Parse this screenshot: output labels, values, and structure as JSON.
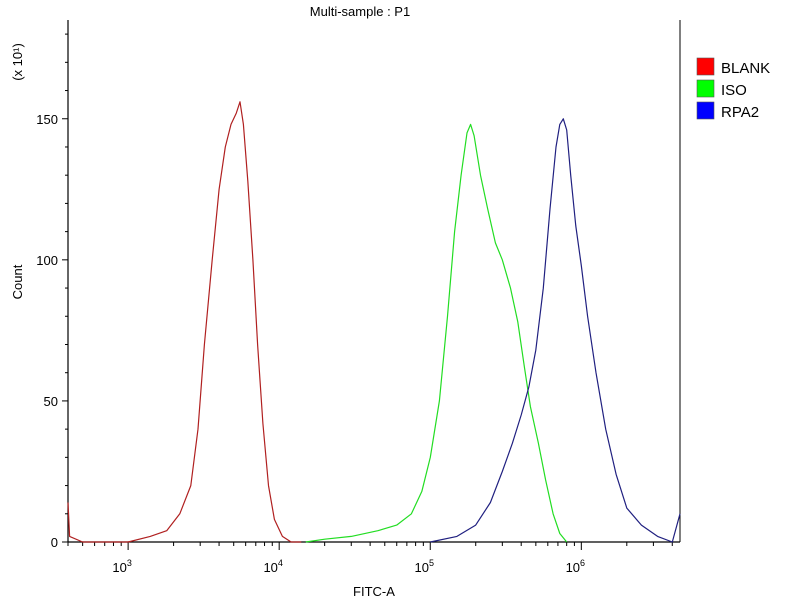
{
  "chart_data": {
    "type": "line",
    "title": "Multi-sample : P1",
    "xlabel": "FITC-A",
    "ylabel": "Count",
    "y_multiplier": "(x 10¹)",
    "x_scale": "log",
    "xlim": [
      400,
      4500000
    ],
    "ylim": [
      0,
      185
    ],
    "x_ticks": [
      {
        "value": 1000,
        "base": "10",
        "exp": "3"
      },
      {
        "value": 10000,
        "base": "10",
        "exp": "4"
      },
      {
        "value": 100000,
        "base": "10",
        "exp": "5"
      },
      {
        "value": 1000000,
        "base": "10",
        "exp": "6"
      }
    ],
    "y_ticks": [
      {
        "value": 0,
        "label": "0"
      },
      {
        "value": 50,
        "label": "50"
      },
      {
        "value": 100,
        "label": "100"
      },
      {
        "value": 150,
        "label": "150"
      }
    ],
    "legend_position": "right",
    "series": [
      {
        "name": "BLANK",
        "color": "#ff0000",
        "line_color": "#b02020",
        "points": [
          [
            400,
            14
          ],
          [
            410,
            2
          ],
          [
            500,
            0
          ],
          [
            1000,
            0
          ],
          [
            1400,
            2
          ],
          [
            1800,
            4
          ],
          [
            2200,
            10
          ],
          [
            2600,
            20
          ],
          [
            2900,
            40
          ],
          [
            3200,
            70
          ],
          [
            3600,
            100
          ],
          [
            4000,
            125
          ],
          [
            4400,
            140
          ],
          [
            4800,
            148
          ],
          [
            5200,
            152
          ],
          [
            5500,
            156
          ],
          [
            5800,
            148
          ],
          [
            6200,
            128
          ],
          [
            6700,
            100
          ],
          [
            7200,
            70
          ],
          [
            7800,
            42
          ],
          [
            8500,
            20
          ],
          [
            9300,
            8
          ],
          [
            10500,
            2
          ],
          [
            12000,
            0
          ],
          [
            14000,
            0
          ]
        ]
      },
      {
        "name": "ISO",
        "color": "#00ff00",
        "line_color": "#22dd22",
        "points": [
          [
            15000,
            0
          ],
          [
            20000,
            1
          ],
          [
            30000,
            2
          ],
          [
            45000,
            4
          ],
          [
            60000,
            6
          ],
          [
            75000,
            10
          ],
          [
            88000,
            18
          ],
          [
            100000,
            30
          ],
          [
            115000,
            50
          ],
          [
            130000,
            80
          ],
          [
            145000,
            110
          ],
          [
            160000,
            130
          ],
          [
            175000,
            145
          ],
          [
            185000,
            148
          ],
          [
            195000,
            144
          ],
          [
            215000,
            130
          ],
          [
            240000,
            118
          ],
          [
            270000,
            106
          ],
          [
            300000,
            100
          ],
          [
            340000,
            90
          ],
          [
            380000,
            78
          ],
          [
            420000,
            62
          ],
          [
            460000,
            48
          ],
          [
            520000,
            35
          ],
          [
            580000,
            22
          ],
          [
            650000,
            10
          ],
          [
            720000,
            3
          ],
          [
            800000,
            0
          ]
        ]
      },
      {
        "name": "RPA2",
        "color": "#0000ff",
        "line_color": "#202080",
        "points": [
          [
            100000,
            0
          ],
          [
            150000,
            2
          ],
          [
            200000,
            6
          ],
          [
            250000,
            14
          ],
          [
            300000,
            25
          ],
          [
            350000,
            35
          ],
          [
            400000,
            45
          ],
          [
            450000,
            55
          ],
          [
            500000,
            68
          ],
          [
            560000,
            90
          ],
          [
            620000,
            118
          ],
          [
            680000,
            140
          ],
          [
            720000,
            148
          ],
          [
            760000,
            150
          ],
          [
            800000,
            146
          ],
          [
            850000,
            130
          ],
          [
            920000,
            112
          ],
          [
            1000000,
            98
          ],
          [
            1100000,
            80
          ],
          [
            1250000,
            60
          ],
          [
            1450000,
            40
          ],
          [
            1700000,
            24
          ],
          [
            2000000,
            12
          ],
          [
            2500000,
            6
          ],
          [
            3200000,
            2
          ],
          [
            4000000,
            0
          ],
          [
            4500000,
            10
          ]
        ]
      }
    ]
  }
}
